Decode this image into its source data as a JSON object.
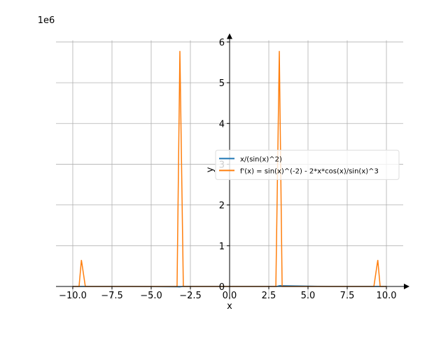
{
  "chart_data": {
    "type": "line",
    "x_label": "x",
    "y_label": "y",
    "y_offset_label": "1e6",
    "series": [
      {
        "name": "x/(sin(x)^2)",
        "color": "#1f77b4",
        "x": [
          -10,
          -6.3,
          -3.2,
          -3.0,
          3.0,
          3.2,
          6.3,
          10
        ],
        "values": [
          0,
          0,
          -0.01,
          0,
          0,
          0.02,
          0,
          0
        ]
      },
      {
        "name": "f'(x) = sin(x)^(-2) - 2*x*cos(x)/sin(x)^3",
        "color": "#ff7f0e",
        "x": [
          -10,
          -9.6,
          -9.45,
          -9.2,
          -3.35,
          -3.17,
          -2.95,
          2.95,
          3.17,
          3.35,
          9.2,
          9.45,
          9.6,
          10
        ],
        "values": [
          0,
          0,
          0.65,
          0,
          0,
          5.78,
          0,
          0,
          5.78,
          0,
          0,
          0.65,
          0,
          0
        ]
      }
    ],
    "xlim": [
      -11.07,
      11.07
    ],
    "ylim": [
      -0.313,
      6.04
    ],
    "xticks": [
      {
        "value": -10,
        "label": "−10.0"
      },
      {
        "value": -7.5,
        "label": "−7.5"
      },
      {
        "value": -5,
        "label": "−5.0"
      },
      {
        "value": -2.5,
        "label": "−2.5"
      },
      {
        "value": 0,
        "label": "0.0"
      },
      {
        "value": 2.5,
        "label": "2.5"
      },
      {
        "value": 5,
        "label": "5.0"
      },
      {
        "value": 7.5,
        "label": "7.5"
      },
      {
        "value": 10,
        "label": "10.0"
      }
    ],
    "yticks": [
      0,
      1,
      2,
      3,
      4,
      5,
      6
    ],
    "grid": true,
    "legend": "center right"
  }
}
